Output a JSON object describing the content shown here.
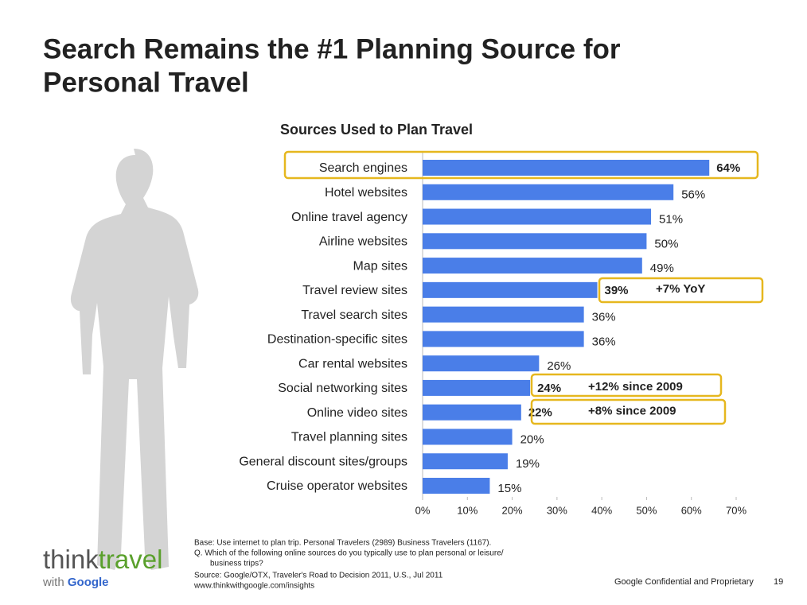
{
  "title_lines": [
    "Search Remains the #1 Planning Source for",
    "Personal Travel"
  ],
  "chart_data": {
    "type": "hbar",
    "title": "Sources Used to Plan Travel",
    "categories": [
      "Search engines",
      "Hotel websites",
      "Online travel agency",
      "Airline websites",
      "Map sites",
      "Travel review sites",
      "Travel search sites",
      "Destination-specific sites",
      "Car rental websites",
      "Social networking sites",
      "Online video sites",
      "Travel planning sites",
      "General discount sites/groups",
      "Cruise operator websites"
    ],
    "values": [
      64,
      56,
      51,
      50,
      49,
      39,
      36,
      36,
      26,
      24,
      22,
      20,
      19,
      15
    ],
    "value_labels": [
      "64%",
      "56%",
      "51%",
      "50%",
      "49%",
      "39%",
      "36%",
      "36%",
      "26%",
      "24%",
      "22%",
      "20%",
      "19%",
      "15%"
    ],
    "color": "#4a7ee8",
    "xlim": [
      0,
      70
    ],
    "xticks": [
      {
        "value": 0,
        "label": "0%"
      },
      {
        "value": 10,
        "label": "10%"
      },
      {
        "value": 20,
        "label": "20%"
      },
      {
        "value": 30,
        "label": "30%"
      },
      {
        "value": 40,
        "label": "40%"
      },
      {
        "value": 50,
        "label": "50%"
      },
      {
        "value": 60,
        "label": "60%"
      },
      {
        "value": 70,
        "label": "70%"
      }
    ],
    "annotations": [
      "+7% YoY",
      "+12% since 2009",
      "+8% since 2009"
    ],
    "highlight_color": "#e6b71e"
  },
  "footnotes": [
    "Base:   Use internet to plan trip. Personal Travelers (2989) Business Travelers (1167).",
    "Q.     Which of the following online sources do you typically use to plan personal or leisure/",
    "business trips?",
    "Source: Google/OTX, Traveler's Road to Decision 2011, U.S., Jul 2011",
    "www.thinkwithgoogle.com/insights"
  ],
  "logo": {
    "think": "think",
    "travel": "travel",
    "with": "with",
    "google": "Google"
  },
  "confidential": "Google Confidential and Proprietary",
  "page_number": "19"
}
